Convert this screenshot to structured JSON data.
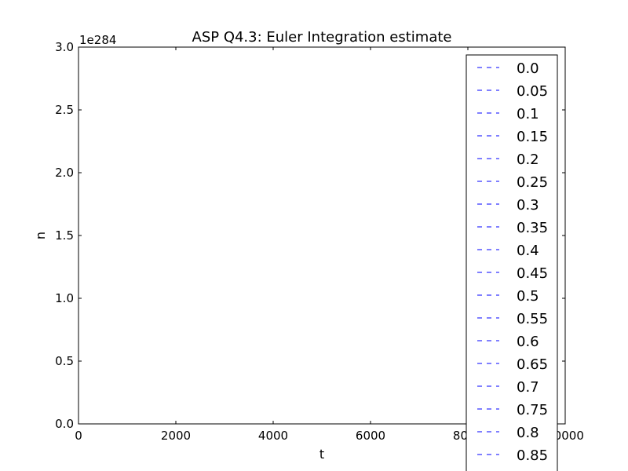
{
  "chart_data": {
    "type": "line",
    "title": "ASP Q4.3: Euler Integration estimate",
    "xlabel": "t",
    "ylabel": "n",
    "xlim": [
      0,
      10000
    ],
    "ylim": [
      0,
      3.0
    ],
    "y_scale_label": "1e284",
    "x_ticks": [
      0,
      2000,
      4000,
      6000,
      8000,
      10000
    ],
    "x_tick_labels": [
      "0",
      "2000",
      "4000",
      "6000",
      "8000",
      "10000"
    ],
    "y_ticks": [
      0.0,
      0.5,
      1.0,
      1.5,
      2.0,
      2.5,
      3.0
    ],
    "y_tick_labels": [
      "0.0",
      "0.5",
      "1.0",
      "1.5",
      "2.0",
      "2.5",
      "3.0"
    ],
    "grid": false,
    "legend_placement": "right",
    "line_style": "dashed",
    "series_color": "#0000ff",
    "series": [
      {
        "name": "0.0",
        "x": [
          0,
          10000
        ],
        "y": [
          0,
          0
        ]
      },
      {
        "name": "0.05",
        "x": [
          0,
          10000
        ],
        "y": [
          0,
          0
        ]
      },
      {
        "name": "0.1",
        "x": [
          0,
          10000
        ],
        "y": [
          0,
          0
        ]
      },
      {
        "name": "0.15",
        "x": [
          0,
          10000
        ],
        "y": [
          0,
          0
        ]
      },
      {
        "name": "0.2",
        "x": [
          0,
          10000
        ],
        "y": [
          0,
          0
        ]
      },
      {
        "name": "0.25",
        "x": [
          0,
          10000
        ],
        "y": [
          0,
          0
        ]
      },
      {
        "name": "0.3",
        "x": [
          0,
          10000
        ],
        "y": [
          0,
          0
        ]
      },
      {
        "name": "0.35",
        "x": [
          0,
          10000
        ],
        "y": [
          0,
          0
        ]
      },
      {
        "name": "0.4",
        "x": [
          0,
          10000
        ],
        "y": [
          0,
          0
        ]
      },
      {
        "name": "0.45",
        "x": [
          0,
          10000
        ],
        "y": [
          0,
          0
        ]
      },
      {
        "name": "0.5",
        "x": [
          0,
          10000
        ],
        "y": [
          0,
          0
        ]
      },
      {
        "name": "0.55",
        "x": [
          0,
          10000
        ],
        "y": [
          0,
          0
        ]
      },
      {
        "name": "0.6",
        "x": [
          0,
          10000
        ],
        "y": [
          0,
          0
        ]
      },
      {
        "name": "0.65",
        "x": [
          0,
          10000
        ],
        "y": [
          0,
          0
        ]
      },
      {
        "name": "0.7",
        "x": [
          0,
          10000
        ],
        "y": [
          0,
          0
        ]
      },
      {
        "name": "0.75",
        "x": [
          0,
          10000
        ],
        "y": [
          0,
          0
        ]
      },
      {
        "name": "0.8",
        "x": [
          0,
          10000
        ],
        "y": [
          0,
          0
        ]
      },
      {
        "name": "0.85",
        "x": [
          0,
          10000
        ],
        "y": [
          0,
          0
        ]
      }
    ]
  }
}
